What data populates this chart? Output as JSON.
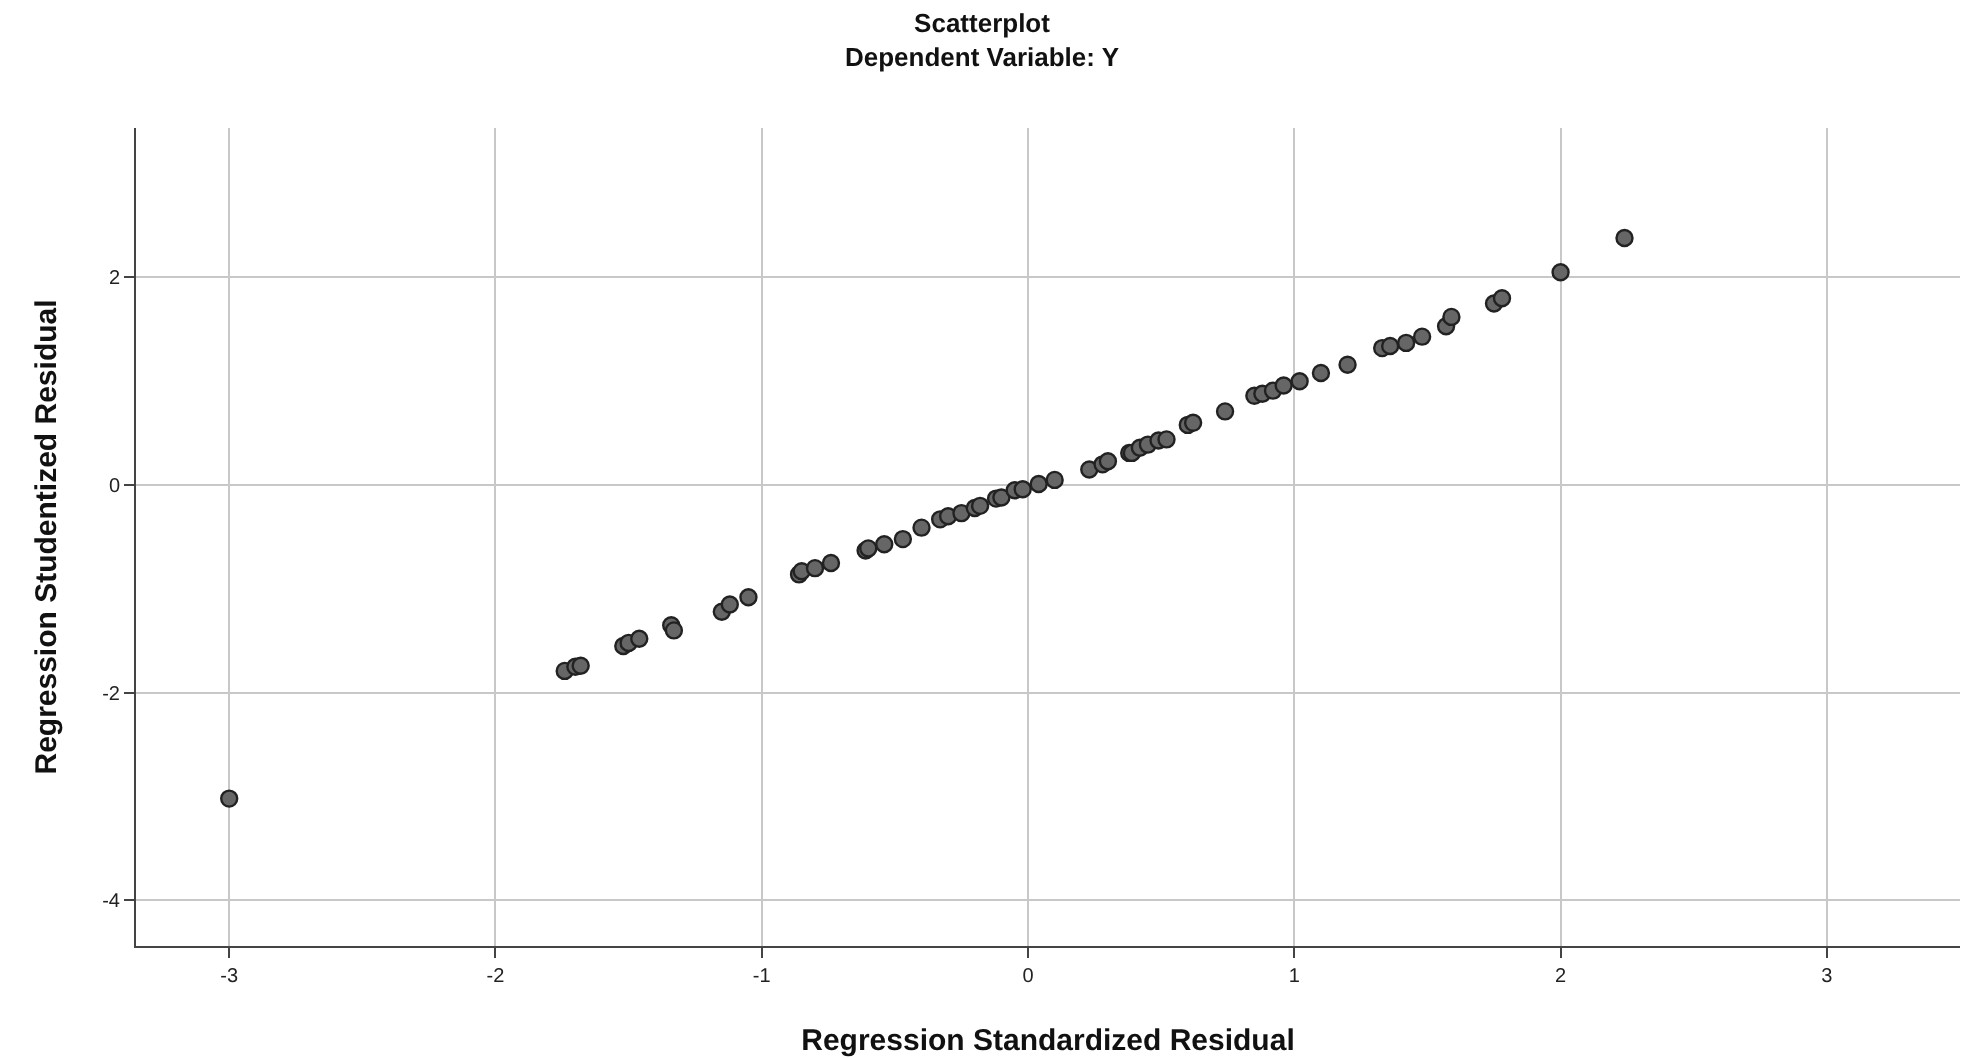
{
  "chart_data": {
    "type": "scatter",
    "title": "Scatterplot",
    "subtitle": "Dependent Variable: Y",
    "xlabel": "Regression Standardized Residual",
    "ylabel": "Regression Studentized Residual",
    "x": [
      -3.0,
      -1.74,
      -1.7,
      -1.68,
      -1.52,
      -1.5,
      -1.46,
      -1.34,
      -1.33,
      -1.15,
      -1.12,
      -1.05,
      -0.86,
      -0.85,
      -0.8,
      -0.74,
      -0.61,
      -0.6,
      -0.54,
      -0.47,
      -0.4,
      -0.33,
      -0.3,
      -0.25,
      -0.2,
      -0.18,
      -0.12,
      -0.1,
      -0.05,
      -0.02,
      0.04,
      0.1,
      0.23,
      0.28,
      0.3,
      0.38,
      0.39,
      0.42,
      0.45,
      0.49,
      0.52,
      0.6,
      0.62,
      0.74,
      0.85,
      0.88,
      0.92,
      0.96,
      1.02,
      1.1,
      1.2,
      1.33,
      1.36,
      1.42,
      1.48,
      1.57,
      1.59,
      1.75,
      1.78,
      2.0,
      2.24
    ],
    "series": [
      {
        "color": "#666666",
        "values": [
          -3.02,
          -1.79,
          -1.75,
          -1.74,
          -1.55,
          -1.52,
          -1.48,
          -1.35,
          -1.4,
          -1.22,
          -1.15,
          -1.08,
          -0.86,
          -0.83,
          -0.8,
          -0.75,
          -0.63,
          -0.61,
          -0.57,
          -0.52,
          -0.41,
          -0.33,
          -0.3,
          -0.27,
          -0.22,
          -0.2,
          -0.13,
          -0.12,
          -0.05,
          -0.04,
          0.01,
          0.05,
          0.15,
          0.2,
          0.23,
          0.31,
          0.31,
          0.36,
          0.39,
          0.43,
          0.44,
          0.58,
          0.6,
          0.71,
          0.86,
          0.88,
          0.91,
          0.96,
          1.0,
          1.08,
          1.16,
          1.32,
          1.34,
          1.37,
          1.43,
          1.53,
          1.62,
          1.75,
          1.8,
          2.05,
          2.38
        ]
      }
    ],
    "xlim": [
      -3.35,
      3.5
    ],
    "xticks": [
      -3,
      -2,
      -1,
      0,
      1,
      2,
      3
    ],
    "ylim": [
      -4.44,
      3.44
    ],
    "yticks": [
      -4,
      -2,
      0,
      2
    ],
    "grid": true,
    "marker": "circle"
  }
}
